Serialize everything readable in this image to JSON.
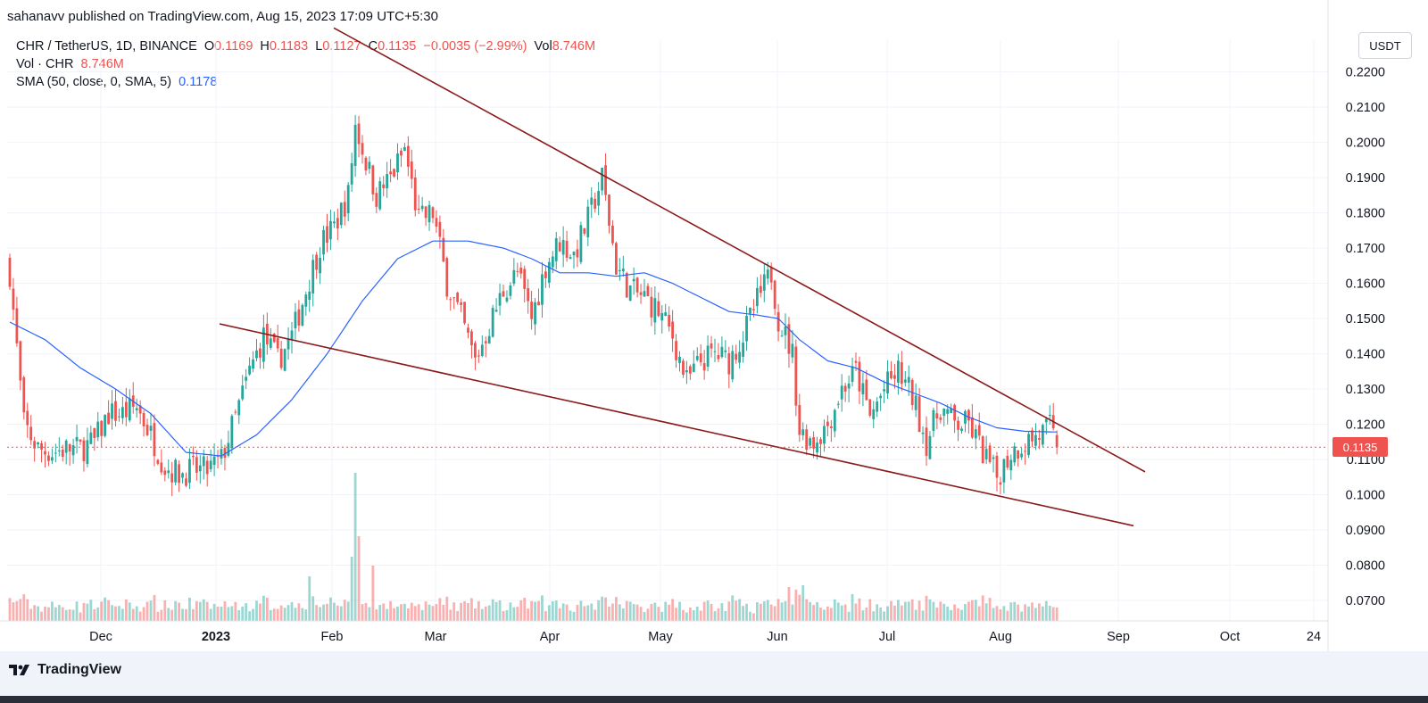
{
  "header": {
    "published": "sahanavv published on TradingView.com, Aug 15, 2023 17:09 UTC+5:30"
  },
  "legend": {
    "symbol": "CHR / TetherUS, 1D, BINANCE",
    "o_label": "O",
    "o_value": "0.1169",
    "h_label": "H",
    "h_value": "0.1183",
    "l_label": "L",
    "l_value": "0.1127",
    "c_label": "C",
    "c_value": "0.1135",
    "change": "−0.0035 (−2.99%)",
    "vol_label": "Vol",
    "vol_value": "8.746M",
    "vol_row_label": "Vol · CHR",
    "vol_row_value": "8.746M",
    "sma_label": "SMA (50, close, 0, SMA, 5)",
    "sma_value": "0.1178"
  },
  "currency_button": "USDT",
  "current_price_tag": "0.1135",
  "brand": "TradingView",
  "colors": {
    "up": "#26a69a",
    "down": "#ef5350",
    "sma": "#2962ff",
    "trendline": "#8b1a1a"
  },
  "chart_data": {
    "type": "candlestick",
    "y_axis": {
      "ticks": [
        "0.2200",
        "0.2100",
        "0.2000",
        "0.1900",
        "0.1800",
        "0.1700",
        "0.1600",
        "0.1500",
        "0.1400",
        "0.1300",
        "0.1200",
        "0.1100",
        "0.1000",
        "0.0900",
        "0.0800",
        "0.0700"
      ],
      "range": [
        0.066,
        0.2325
      ]
    },
    "x_axis": {
      "labels": [
        "Dec",
        "2023",
        "Feb",
        "Mar",
        "Apr",
        "May",
        "Jun",
        "Jul",
        "Aug",
        "Sep",
        "Oct",
        "24"
      ]
    },
    "grid": true,
    "last_close": 0.1135,
    "price_anchors_close": [
      [
        0,
        0.163
      ],
      [
        4,
        0.12
      ],
      [
        8,
        0.113
      ],
      [
        12,
        0.112
      ],
      [
        16,
        0.113
      ],
      [
        20,
        0.113
      ],
      [
        24,
        0.115
      ],
      [
        28,
        0.123
      ],
      [
        32,
        0.123
      ],
      [
        36,
        0.125
      ],
      [
        40,
        0.117
      ],
      [
        44,
        0.108
      ],
      [
        48,
        0.106
      ],
      [
        52,
        0.107
      ],
      [
        56,
        0.107
      ],
      [
        60,
        0.11
      ],
      [
        64,
        0.122
      ],
      [
        68,
        0.135
      ],
      [
        72,
        0.145
      ],
      [
        76,
        0.138
      ],
      [
        80,
        0.145
      ],
      [
        84,
        0.158
      ],
      [
        88,
        0.171
      ],
      [
        92,
        0.176
      ],
      [
        96,
        0.185
      ],
      [
        98,
        0.205
      ],
      [
        100,
        0.198
      ],
      [
        104,
        0.185
      ],
      [
        108,
        0.19
      ],
      [
        112,
        0.198
      ],
      [
        116,
        0.178
      ],
      [
        120,
        0.18
      ],
      [
        124,
        0.16
      ],
      [
        128,
        0.15
      ],
      [
        132,
        0.138
      ],
      [
        136,
        0.148
      ],
      [
        140,
        0.158
      ],
      [
        144,
        0.163
      ],
      [
        148,
        0.15
      ],
      [
        152,
        0.165
      ],
      [
        156,
        0.172
      ],
      [
        160,
        0.168
      ],
      [
        164,
        0.178
      ],
      [
        168,
        0.19
      ],
      [
        172,
        0.165
      ],
      [
        176,
        0.158
      ],
      [
        180,
        0.156
      ],
      [
        184,
        0.152
      ],
      [
        188,
        0.145
      ],
      [
        192,
        0.132
      ],
      [
        196,
        0.138
      ],
      [
        200,
        0.14
      ],
      [
        204,
        0.138
      ],
      [
        208,
        0.145
      ],
      [
        212,
        0.155
      ],
      [
        216,
        0.163
      ],
      [
        218,
        0.15
      ],
      [
        222,
        0.14
      ],
      [
        224,
        0.118
      ],
      [
        228,
        0.115
      ],
      [
        232,
        0.12
      ],
      [
        236,
        0.13
      ],
      [
        240,
        0.135
      ],
      [
        244,
        0.122
      ],
      [
        248,
        0.13
      ],
      [
        252,
        0.135
      ],
      [
        256,
        0.128
      ],
      [
        260,
        0.115
      ],
      [
        264,
        0.125
      ],
      [
        268,
        0.12
      ],
      [
        272,
        0.12
      ],
      [
        276,
        0.112
      ],
      [
        280,
        0.105
      ],
      [
        284,
        0.112
      ],
      [
        288,
        0.115
      ],
      [
        292,
        0.117
      ],
      [
        295,
        0.119
      ],
      [
        297,
        0.1135
      ]
    ],
    "sma_anchors": [
      [
        0,
        0.149
      ],
      [
        10,
        0.144
      ],
      [
        20,
        0.136
      ],
      [
        30,
        0.13
      ],
      [
        40,
        0.123
      ],
      [
        50,
        0.112
      ],
      [
        60,
        0.111
      ],
      [
        70,
        0.117
      ],
      [
        80,
        0.127
      ],
      [
        90,
        0.14
      ],
      [
        100,
        0.155
      ],
      [
        110,
        0.167
      ],
      [
        120,
        0.172
      ],
      [
        130,
        0.172
      ],
      [
        140,
        0.17
      ],
      [
        148,
        0.167
      ],
      [
        156,
        0.163
      ],
      [
        164,
        0.163
      ],
      [
        172,
        0.162
      ],
      [
        180,
        0.163
      ],
      [
        188,
        0.16
      ],
      [
        196,
        0.156
      ],
      [
        204,
        0.152
      ],
      [
        212,
        0.151
      ],
      [
        218,
        0.15
      ],
      [
        224,
        0.144
      ],
      [
        232,
        0.138
      ],
      [
        240,
        0.136
      ],
      [
        248,
        0.132
      ],
      [
        256,
        0.129
      ],
      [
        264,
        0.126
      ],
      [
        272,
        0.122
      ],
      [
        280,
        0.119
      ],
      [
        288,
        0.118
      ],
      [
        297,
        0.1178
      ]
    ],
    "trendline_upper": [
      [
        374,
        0.2325
      ],
      [
        1283,
        0.1065
      ]
    ],
    "trendline_lower": [
      [
        246,
        0.1485
      ],
      [
        1270,
        0.0912
      ]
    ],
    "volume_peak_label": "Feb"
  }
}
